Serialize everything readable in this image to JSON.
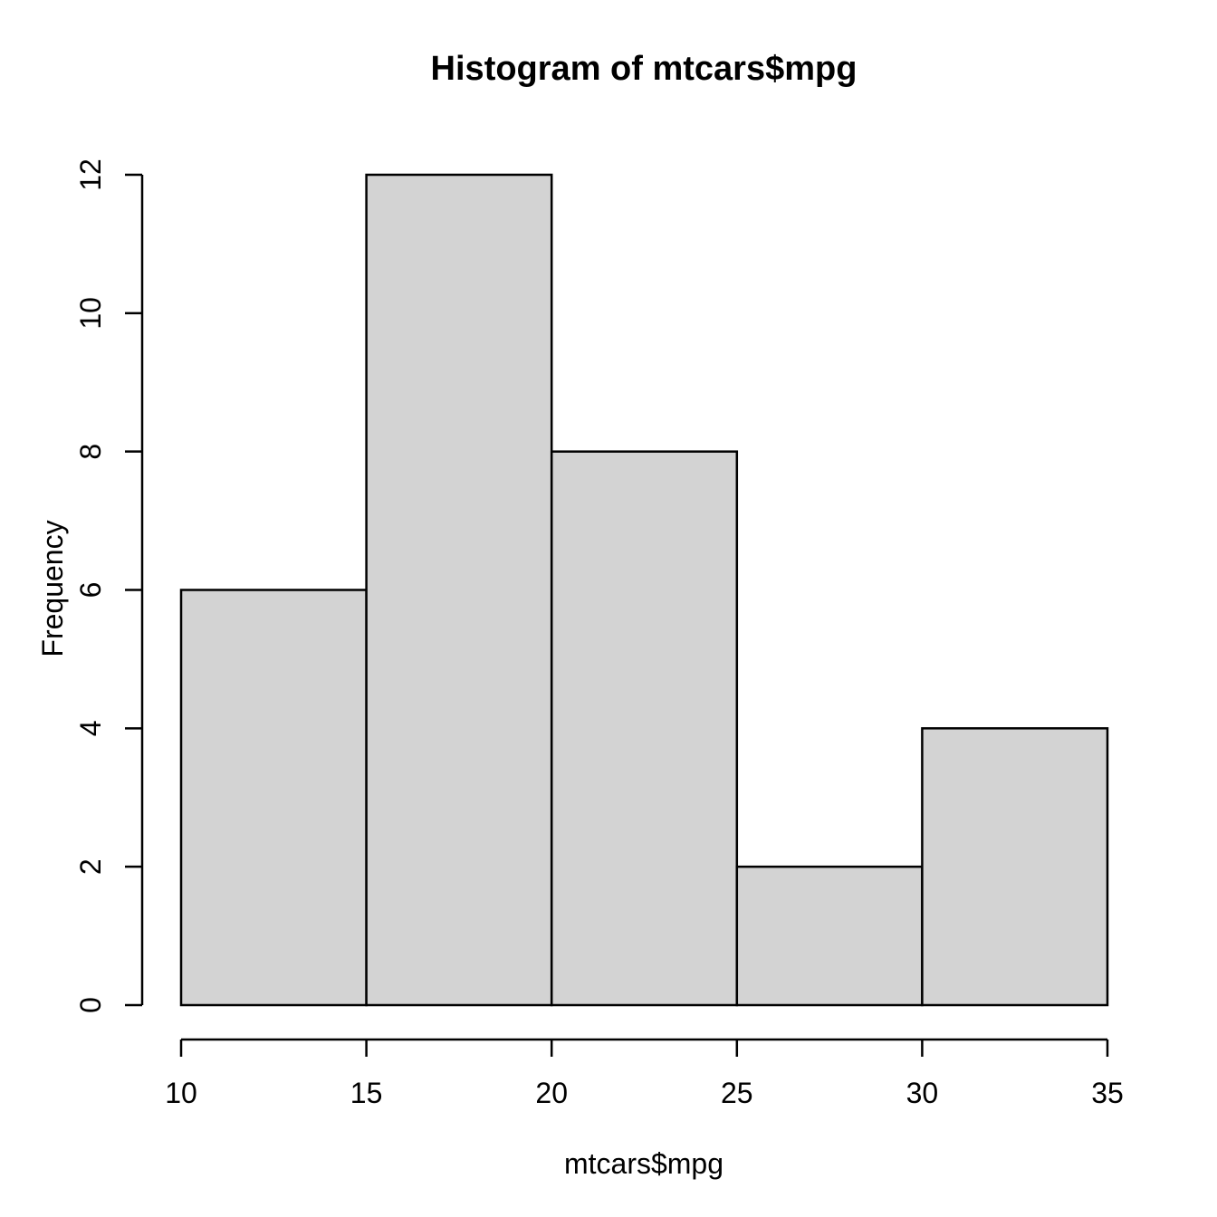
{
  "chart_data": {
    "type": "bar",
    "subtype": "histogram",
    "title": "Histogram of mtcars$mpg",
    "xlabel": "mtcars$mpg",
    "ylabel": "Frequency",
    "breaks": [
      10,
      15,
      20,
      25,
      30,
      35
    ],
    "counts": [
      6,
      12,
      8,
      2,
      4
    ],
    "bin_labels": [
      "10-15",
      "15-20",
      "20-25",
      "25-30",
      "30-35"
    ],
    "x_ticks": [
      10,
      15,
      20,
      25,
      30,
      35
    ],
    "y_ticks": [
      0,
      2,
      4,
      6,
      8,
      10,
      12
    ],
    "xlim": [
      10,
      35
    ],
    "ylim": [
      0,
      12
    ],
    "grid": false,
    "legend_position": "none",
    "colors": {
      "bar_fill": "#D3D3D3",
      "bar_border": "#000000",
      "axis": "#000000",
      "text": "#000000",
      "background": "#FFFFFF"
    }
  }
}
